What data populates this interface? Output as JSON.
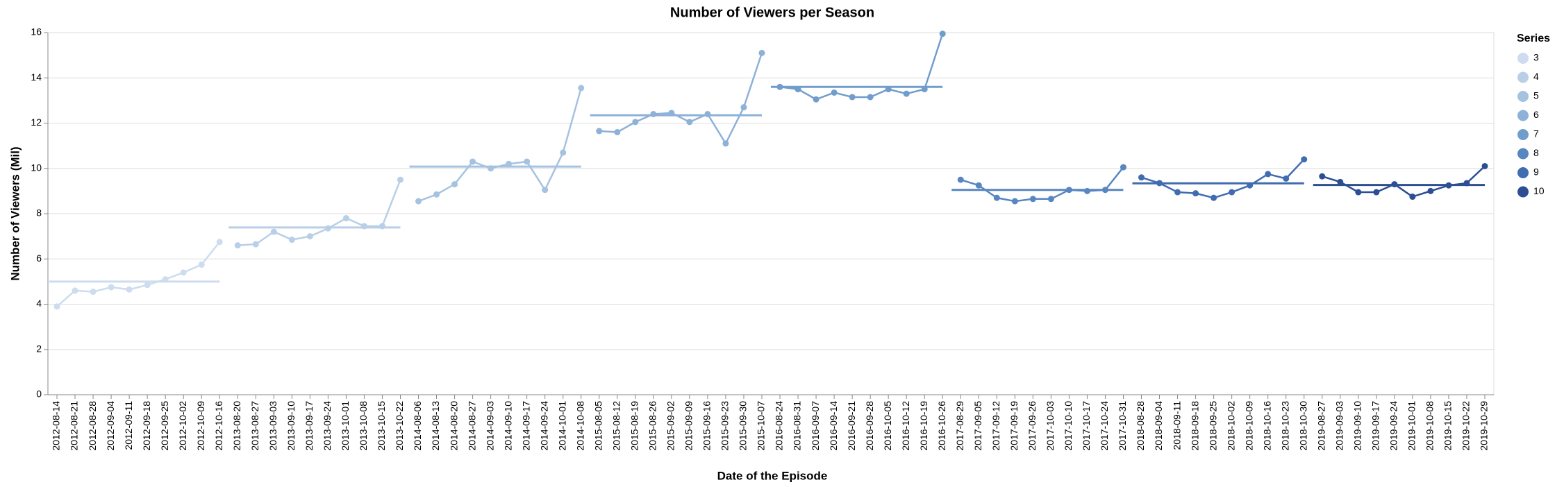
{
  "chart_data": {
    "type": "line",
    "title": "Number of Viewers per Season",
    "x_label": "Date of the Episode",
    "y_label": "Number of Viewers (Mil)",
    "legend_title": "Series",
    "legend_position": "right",
    "grid": true,
    "ylim": [
      0,
      16
    ],
    "yticks": [
      0,
      2,
      4,
      6,
      8,
      10,
      12,
      14,
      16
    ],
    "categories": [
      "2012-08-14",
      "2012-08-21",
      "2012-08-28",
      "2012-09-04",
      "2012-09-11",
      "2012-09-18",
      "2012-09-25",
      "2012-10-02",
      "2012-10-09",
      "2012-10-16",
      "2013-08-20",
      "2013-08-27",
      "2013-09-03",
      "2013-09-10",
      "2013-09-17",
      "2013-09-24",
      "2013-10-01",
      "2013-10-08",
      "2013-10-15",
      "2013-10-22",
      "2014-08-06",
      "2014-08-13",
      "2014-08-20",
      "2014-08-27",
      "2014-09-03",
      "2014-09-10",
      "2014-09-17",
      "2014-09-24",
      "2014-10-01",
      "2014-10-08",
      "2015-08-05",
      "2015-08-12",
      "2015-08-19",
      "2015-08-26",
      "2015-09-02",
      "2015-09-09",
      "2015-09-16",
      "2015-09-23",
      "2015-09-30",
      "2015-10-07",
      "2016-08-24",
      "2016-08-31",
      "2016-09-07",
      "2016-09-14",
      "2016-09-21",
      "2016-09-28",
      "2016-10-05",
      "2016-10-12",
      "2016-10-19",
      "2016-10-26",
      "2017-08-29",
      "2017-09-05",
      "2017-09-12",
      "2017-09-19",
      "2017-09-26",
      "2017-10-03",
      "2017-10-10",
      "2017-10-17",
      "2017-10-24",
      "2017-10-31",
      "2018-08-28",
      "2018-09-04",
      "2018-09-11",
      "2018-09-18",
      "2018-09-25",
      "2018-10-02",
      "2018-10-09",
      "2018-10-16",
      "2018-10-23",
      "2018-10-30",
      "2019-08-27",
      "2019-09-03",
      "2019-09-10",
      "2019-09-17",
      "2019-09-24",
      "2019-10-01",
      "2019-10-08",
      "2019-10-15",
      "2019-10-22",
      "2019-10-29"
    ],
    "series": [
      {
        "name": "3",
        "color": "#cddcef",
        "mean": 5.0,
        "values": [
          3.9,
          4.6,
          4.55,
          4.75,
          4.65,
          4.85,
          5.1,
          5.4,
          5.75,
          6.75,
          null,
          null,
          null,
          null,
          null,
          null,
          null,
          null,
          null,
          null,
          null,
          null,
          null,
          null,
          null,
          null,
          null,
          null,
          null,
          null,
          null,
          null,
          null,
          null,
          null,
          null,
          null,
          null,
          null,
          null,
          null,
          null,
          null,
          null,
          null,
          null,
          null,
          null,
          null,
          null,
          null,
          null,
          null,
          null,
          null,
          null,
          null,
          null,
          null,
          null,
          null,
          null,
          null,
          null,
          null,
          null,
          null,
          null,
          null,
          null,
          null,
          null,
          null,
          null,
          null,
          null,
          null,
          null,
          null,
          null
        ]
      },
      {
        "name": "4",
        "color": "#b9cfe7",
        "mean": 7.39,
        "values": [
          null,
          null,
          null,
          null,
          null,
          null,
          null,
          null,
          null,
          null,
          6.6,
          6.65,
          7.2,
          6.85,
          7.0,
          7.35,
          7.8,
          7.45,
          7.45,
          9.5,
          null,
          null,
          null,
          null,
          null,
          null,
          null,
          null,
          null,
          null,
          null,
          null,
          null,
          null,
          null,
          null,
          null,
          null,
          null,
          null,
          null,
          null,
          null,
          null,
          null,
          null,
          null,
          null,
          null,
          null,
          null,
          null,
          null,
          null,
          null,
          null,
          null,
          null,
          null,
          null,
          null,
          null,
          null,
          null,
          null,
          null,
          null,
          null,
          null,
          null,
          null,
          null,
          null,
          null,
          null,
          null,
          null,
          null,
          null,
          null
        ]
      },
      {
        "name": "5",
        "color": "#a5c2e0",
        "mean": 10.08,
        "values": [
          null,
          null,
          null,
          null,
          null,
          null,
          null,
          null,
          null,
          null,
          null,
          null,
          null,
          null,
          null,
          null,
          null,
          null,
          null,
          null,
          8.55,
          8.85,
          9.3,
          10.3,
          10.0,
          10.2,
          10.3,
          9.05,
          10.7,
          13.55,
          null,
          null,
          null,
          null,
          null,
          null,
          null,
          null,
          null,
          null,
          null,
          null,
          null,
          null,
          null,
          null,
          null,
          null,
          null,
          null,
          null,
          null,
          null,
          null,
          null,
          null,
          null,
          null,
          null,
          null,
          null,
          null,
          null,
          null,
          null,
          null,
          null,
          null,
          null,
          null,
          null,
          null,
          null,
          null,
          null,
          null,
          null,
          null,
          null,
          null
        ]
      },
      {
        "name": "6",
        "color": "#8db1d7",
        "mean": 12.35,
        "values": [
          null,
          null,
          null,
          null,
          null,
          null,
          null,
          null,
          null,
          null,
          null,
          null,
          null,
          null,
          null,
          null,
          null,
          null,
          null,
          null,
          null,
          null,
          null,
          null,
          null,
          null,
          null,
          null,
          null,
          null,
          11.65,
          11.6,
          12.05,
          12.4,
          12.45,
          12.05,
          12.4,
          11.1,
          12.7,
          15.1,
          null,
          null,
          null,
          null,
          null,
          null,
          null,
          null,
          null,
          null,
          null,
          null,
          null,
          null,
          null,
          null,
          null,
          null,
          null,
          null,
          null,
          null,
          null,
          null,
          null,
          null,
          null,
          null,
          null,
          null,
          null,
          null,
          null,
          null,
          null,
          null,
          null,
          null,
          null,
          null
        ]
      },
      {
        "name": "7",
        "color": "#719dcc",
        "mean": 13.6,
        "values": [
          null,
          null,
          null,
          null,
          null,
          null,
          null,
          null,
          null,
          null,
          null,
          null,
          null,
          null,
          null,
          null,
          null,
          null,
          null,
          null,
          null,
          null,
          null,
          null,
          null,
          null,
          null,
          null,
          null,
          null,
          null,
          null,
          null,
          null,
          null,
          null,
          null,
          null,
          null,
          null,
          13.6,
          13.5,
          13.05,
          13.35,
          13.15,
          13.15,
          13.5,
          13.3,
          13.5,
          15.95,
          null,
          null,
          null,
          null,
          null,
          null,
          null,
          null,
          null,
          null,
          null,
          null,
          null,
          null,
          null,
          null,
          null,
          null,
          null,
          null,
          null,
          null,
          null,
          null,
          null,
          null,
          null,
          null,
          null,
          null
        ]
      },
      {
        "name": "8",
        "color": "#5886c1",
        "mean": 9.05,
        "values": [
          null,
          null,
          null,
          null,
          null,
          null,
          null,
          null,
          null,
          null,
          null,
          null,
          null,
          null,
          null,
          null,
          null,
          null,
          null,
          null,
          null,
          null,
          null,
          null,
          null,
          null,
          null,
          null,
          null,
          null,
          null,
          null,
          null,
          null,
          null,
          null,
          null,
          null,
          null,
          null,
          null,
          null,
          null,
          null,
          null,
          null,
          null,
          null,
          null,
          null,
          9.5,
          9.25,
          8.7,
          8.55,
          8.65,
          8.65,
          9.05,
          9.0,
          9.05,
          10.05,
          null,
          null,
          null,
          null,
          null,
          null,
          null,
          null,
          null,
          null,
          null,
          null,
          null,
          null,
          null,
          null,
          null,
          null,
          null,
          null
        ]
      },
      {
        "name": "9",
        "color": "#406cb0",
        "mean": 9.34,
        "values": [
          null,
          null,
          null,
          null,
          null,
          null,
          null,
          null,
          null,
          null,
          null,
          null,
          null,
          null,
          null,
          null,
          null,
          null,
          null,
          null,
          null,
          null,
          null,
          null,
          null,
          null,
          null,
          null,
          null,
          null,
          null,
          null,
          null,
          null,
          null,
          null,
          null,
          null,
          null,
          null,
          null,
          null,
          null,
          null,
          null,
          null,
          null,
          null,
          null,
          null,
          null,
          null,
          null,
          null,
          null,
          null,
          null,
          null,
          null,
          null,
          9.6,
          9.35,
          8.95,
          8.9,
          8.7,
          8.95,
          9.25,
          9.75,
          9.55,
          10.4,
          null,
          null,
          null,
          null,
          null,
          null,
          null,
          null,
          null,
          null
        ]
      },
      {
        "name": "10",
        "color": "#2c4e92",
        "mean": 9.27,
        "values": [
          null,
          null,
          null,
          null,
          null,
          null,
          null,
          null,
          null,
          null,
          null,
          null,
          null,
          null,
          null,
          null,
          null,
          null,
          null,
          null,
          null,
          null,
          null,
          null,
          null,
          null,
          null,
          null,
          null,
          null,
          null,
          null,
          null,
          null,
          null,
          null,
          null,
          null,
          null,
          null,
          null,
          null,
          null,
          null,
          null,
          null,
          null,
          null,
          null,
          null,
          null,
          null,
          null,
          null,
          null,
          null,
          null,
          null,
          null,
          null,
          null,
          null,
          null,
          null,
          null,
          null,
          null,
          null,
          null,
          null,
          9.65,
          9.4,
          8.95,
          8.95,
          9.3,
          8.75,
          9.0,
          9.25,
          9.35,
          10.1
        ]
      }
    ]
  }
}
